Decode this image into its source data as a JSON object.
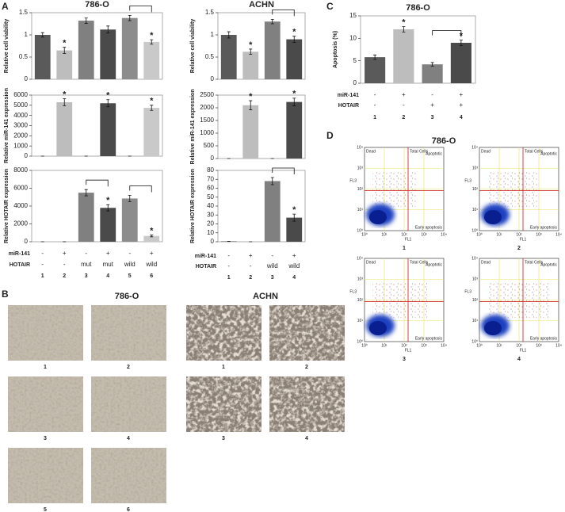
{
  "panel_labels": [
    "A",
    "B",
    "C",
    "D"
  ],
  "chart_data": [
    {
      "type": "bar",
      "title": "786-O",
      "ylabel": "Relative cell viability",
      "values": [
        1.0,
        0.65,
        1.32,
        1.12,
        1.38,
        0.84
      ],
      "errors": [
        0.05,
        0.07,
        0.06,
        0.08,
        0.06,
        0.05
      ],
      "colors": [
        "#5a5a5a",
        "#bdbdbd",
        "#808080",
        "#4a4a4a",
        "#8c8c8c",
        "#c9c9c9"
      ],
      "ylim": [
        0,
        1.5
      ],
      "yticks": [
        0,
        0.5,
        1,
        1.5
      ],
      "stars": {
        "text": "*",
        "bars": [
          1,
          5
        ]
      },
      "brackets": [
        [
          4,
          5
        ]
      ]
    },
    {
      "type": "bar",
      "ylabel": "Relative miR-141 expression",
      "values": [
        0,
        5300,
        0,
        5200,
        0,
        4750
      ],
      "errors": [
        0,
        350,
        0,
        350,
        0,
        250
      ],
      "colors": [
        "#5a5a5a",
        "#bdbdbd",
        "#808080",
        "#4a4a4a",
        "#8c8c8c",
        "#c9c9c9"
      ],
      "ylim": [
        0,
        6000
      ],
      "yticks": [
        0,
        1000,
        2000,
        3000,
        4000,
        5000,
        6000
      ],
      "stars": {
        "text": "*",
        "bars": [
          1,
          3,
          5
        ]
      },
      "brackets": []
    },
    {
      "type": "bar",
      "ylabel": "Relative HOTAIR expression",
      "categories": [
        "1",
        "2",
        "3",
        "4",
        "5",
        "6"
      ],
      "rows": [
        {
          "name": "miR-141",
          "values": [
            "-",
            "+",
            "-",
            "+",
            "-",
            "+"
          ]
        },
        {
          "name": "HOTAIR",
          "values": [
            "-",
            "-",
            "mut",
            "mut",
            "wild",
            "wild"
          ]
        }
      ],
      "values": [
        0,
        0,
        5500,
        3800,
        4850,
        650
      ],
      "errors": [
        0,
        0,
        350,
        350,
        350,
        100
      ],
      "colors": [
        "#5a5a5a",
        "#bdbdbd",
        "#808080",
        "#4a4a4a",
        "#8c8c8c",
        "#c9c9c9"
      ],
      "ylim": [
        0,
        8000
      ],
      "yticks": [
        0,
        2000,
        4000,
        6000,
        8000
      ],
      "stars": {
        "text": "*",
        "bars": [
          3,
          5
        ]
      },
      "brackets": [
        [
          2,
          3
        ],
        [
          4,
          5
        ]
      ]
    },
    {
      "type": "bar",
      "title": "ACHN",
      "ylabel": "Relative cell viability",
      "values": [
        1.0,
        0.62,
        1.3,
        0.9
      ],
      "errors": [
        0.07,
        0.06,
        0.05,
        0.07
      ],
      "colors": [
        "#5a5a5a",
        "#bdbdbd",
        "#808080",
        "#4a4a4a"
      ],
      "ylim": [
        0,
        1.5
      ],
      "yticks": [
        0,
        0.5,
        1,
        1.5
      ],
      "stars": {
        "text": "*",
        "bars": [
          1,
          3
        ]
      },
      "brackets": [
        [
          2,
          3
        ]
      ]
    },
    {
      "type": "bar",
      "ylabel": "Relative miR-141 expression",
      "values": [
        0,
        2100,
        0,
        2230
      ],
      "errors": [
        0,
        180,
        0,
        150
      ],
      "colors": [
        "#5a5a5a",
        "#bdbdbd",
        "#808080",
        "#4a4a4a"
      ],
      "ylim": [
        0,
        2500
      ],
      "yticks": [
        0,
        500,
        1000,
        1500,
        2000,
        2500
      ],
      "stars": {
        "text": "*",
        "bars": [
          1,
          3
        ]
      },
      "brackets": []
    },
    {
      "type": "bar",
      "ylabel": "Relative HOTAIR expression",
      "categories": [
        "1",
        "2",
        "3",
        "4"
      ],
      "rows": [
        {
          "name": "miR-141",
          "values": [
            "-",
            "+",
            "-",
            "+"
          ]
        },
        {
          "name": "HOTAIR",
          "values": [
            "-",
            "-",
            "wild",
            "wild"
          ]
        }
      ],
      "values": [
        0.5,
        0,
        68,
        27
      ],
      "errors": [
        0,
        0,
        4,
        4
      ],
      "colors": [
        "#5a5a5a",
        "#bdbdbd",
        "#808080",
        "#4a4a4a"
      ],
      "ylim": [
        0,
        80
      ],
      "yticks": [
        0,
        10,
        20,
        30,
        40,
        50,
        60,
        70,
        80
      ],
      "stars": {
        "text": "*",
        "bars": [
          3
        ]
      },
      "brackets": [
        [
          2,
          3
        ]
      ]
    },
    {
      "type": "bar",
      "title": "786-O",
      "ylabel": "Apoptosis (%)",
      "categories": [
        "1",
        "2",
        "3",
        "4"
      ],
      "rows": [
        {
          "name": "miR-141",
          "values": [
            "-",
            "+",
            "-",
            "+"
          ]
        },
        {
          "name": "HOTAIR",
          "values": [
            "-",
            "-",
            "+",
            "+"
          ]
        }
      ],
      "values": [
        5.8,
        12,
        4.2,
        9
      ],
      "errors": [
        0.5,
        0.6,
        0.4,
        0.6
      ],
      "colors": [
        "#5a5a5a",
        "#bdbdbd",
        "#808080",
        "#4a4a4a"
      ],
      "ylim": [
        0,
        15
      ],
      "yticks": [
        0,
        5,
        10,
        15
      ],
      "stars": {
        "text": "*",
        "bars": [
          1,
          3
        ]
      },
      "brackets": [
        [
          2,
          3
        ]
      ]
    }
  ],
  "micrographs": [
    {
      "title": "786-O",
      "labels": [
        "1",
        "2",
        "3",
        "4",
        "5",
        "6"
      ]
    },
    {
      "title": "ACHN",
      "labels": [
        "1",
        "2",
        "3",
        "4"
      ]
    }
  ],
  "flow": {
    "title": "786-O",
    "labels": [
      "1",
      "2",
      "3",
      "4"
    ],
    "quadrant_labels": [
      "Dead",
      "Total Cells",
      "Apoptotic",
      "Early apoptosis"
    ],
    "x_label": "FL1",
    "y_label": "FL3",
    "ticks": [
      "10⁰",
      "10¹",
      "10²",
      "10³",
      "10⁴"
    ]
  }
}
